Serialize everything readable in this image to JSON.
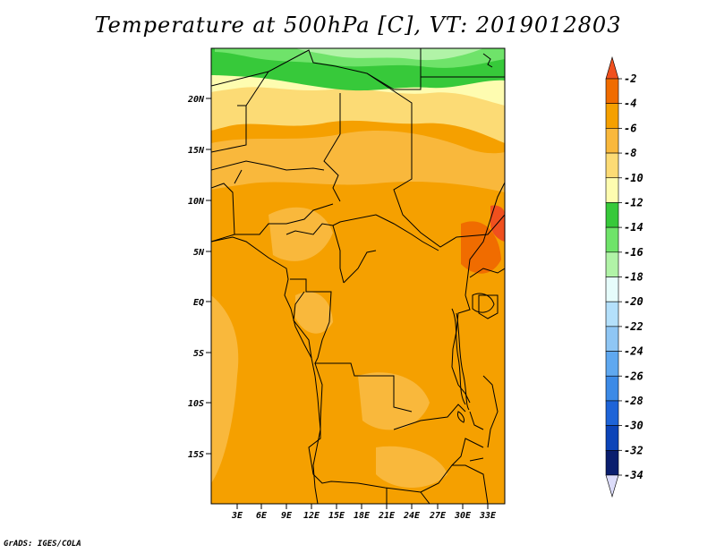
{
  "title": "Temperature at 500hPa [C], VT: 2019012803",
  "credit": "GrADS: IGES/COLA",
  "map": {
    "lat_labels": [
      "20N",
      "15N",
      "10N",
      "5N",
      "EQ",
      "5S",
      "10S",
      "15S"
    ],
    "lon_labels": [
      "3E",
      "6E",
      "9E",
      "12E",
      "15E",
      "18E",
      "21E",
      "24E",
      "27E",
      "30E",
      "33E"
    ]
  },
  "colorbar": {
    "labels": [
      "-2",
      "-4",
      "-6",
      "-8",
      "-10",
      "-12",
      "-14",
      "-16",
      "-18",
      "-20",
      "-22",
      "-24",
      "-26",
      "-28",
      "-30",
      "-32",
      "-34"
    ],
    "colors": [
      "#f0501e",
      "#f06c00",
      "#f5a000",
      "#f9b83c",
      "#fcdb75",
      "#fefcb0",
      "#37c93a",
      "#6fe36a",
      "#b1f3a7",
      "#e6fcfb",
      "#b4e0fb",
      "#8fc6f4",
      "#5fa8f0",
      "#3c8ae6",
      "#1e64d8",
      "#0c44b8",
      "#0a1e6e",
      "#dcdcfa"
    ]
  }
}
